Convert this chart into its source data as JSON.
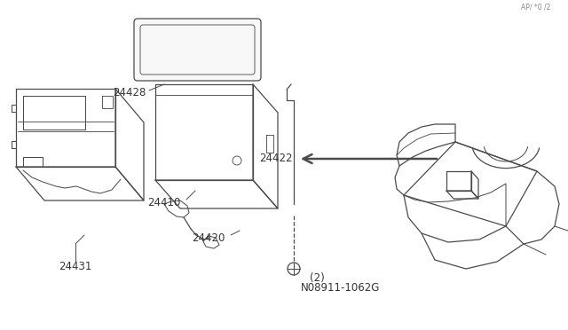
{
  "bg_color": "#ffffff",
  "line_color": "#4a4a4a",
  "label_color": "#333333",
  "lw": 0.9
}
